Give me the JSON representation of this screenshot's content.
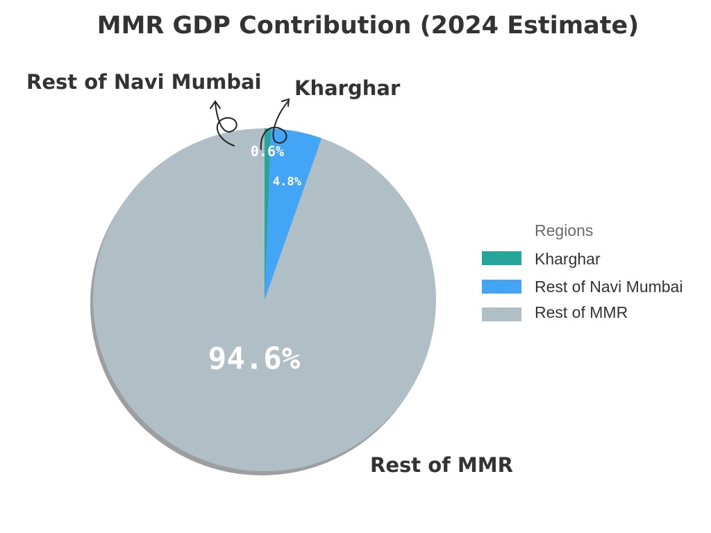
{
  "chart_data": {
    "type": "pie",
    "title": "MMR GDP Contribution (2024 Estimate)",
    "categories": [
      "Kharghar",
      "Rest of Navi Mumbai",
      "Rest of MMR"
    ],
    "values": [
      0.6,
      4.8,
      94.6
    ],
    "value_labels": [
      "0.6%",
      "4.8%",
      "94.6%"
    ],
    "colors": [
      "#26a69a",
      "#42a5f5",
      "#b0bec5"
    ],
    "callouts": [
      "Kharghar",
      "Rest of Navi Mumbai",
      "Rest of MMR"
    ],
    "legend": {
      "title": "Regions",
      "position": "right",
      "entries": [
        "Kharghar",
        "Rest of Navi Mumbai",
        "Rest of MMR"
      ]
    }
  }
}
